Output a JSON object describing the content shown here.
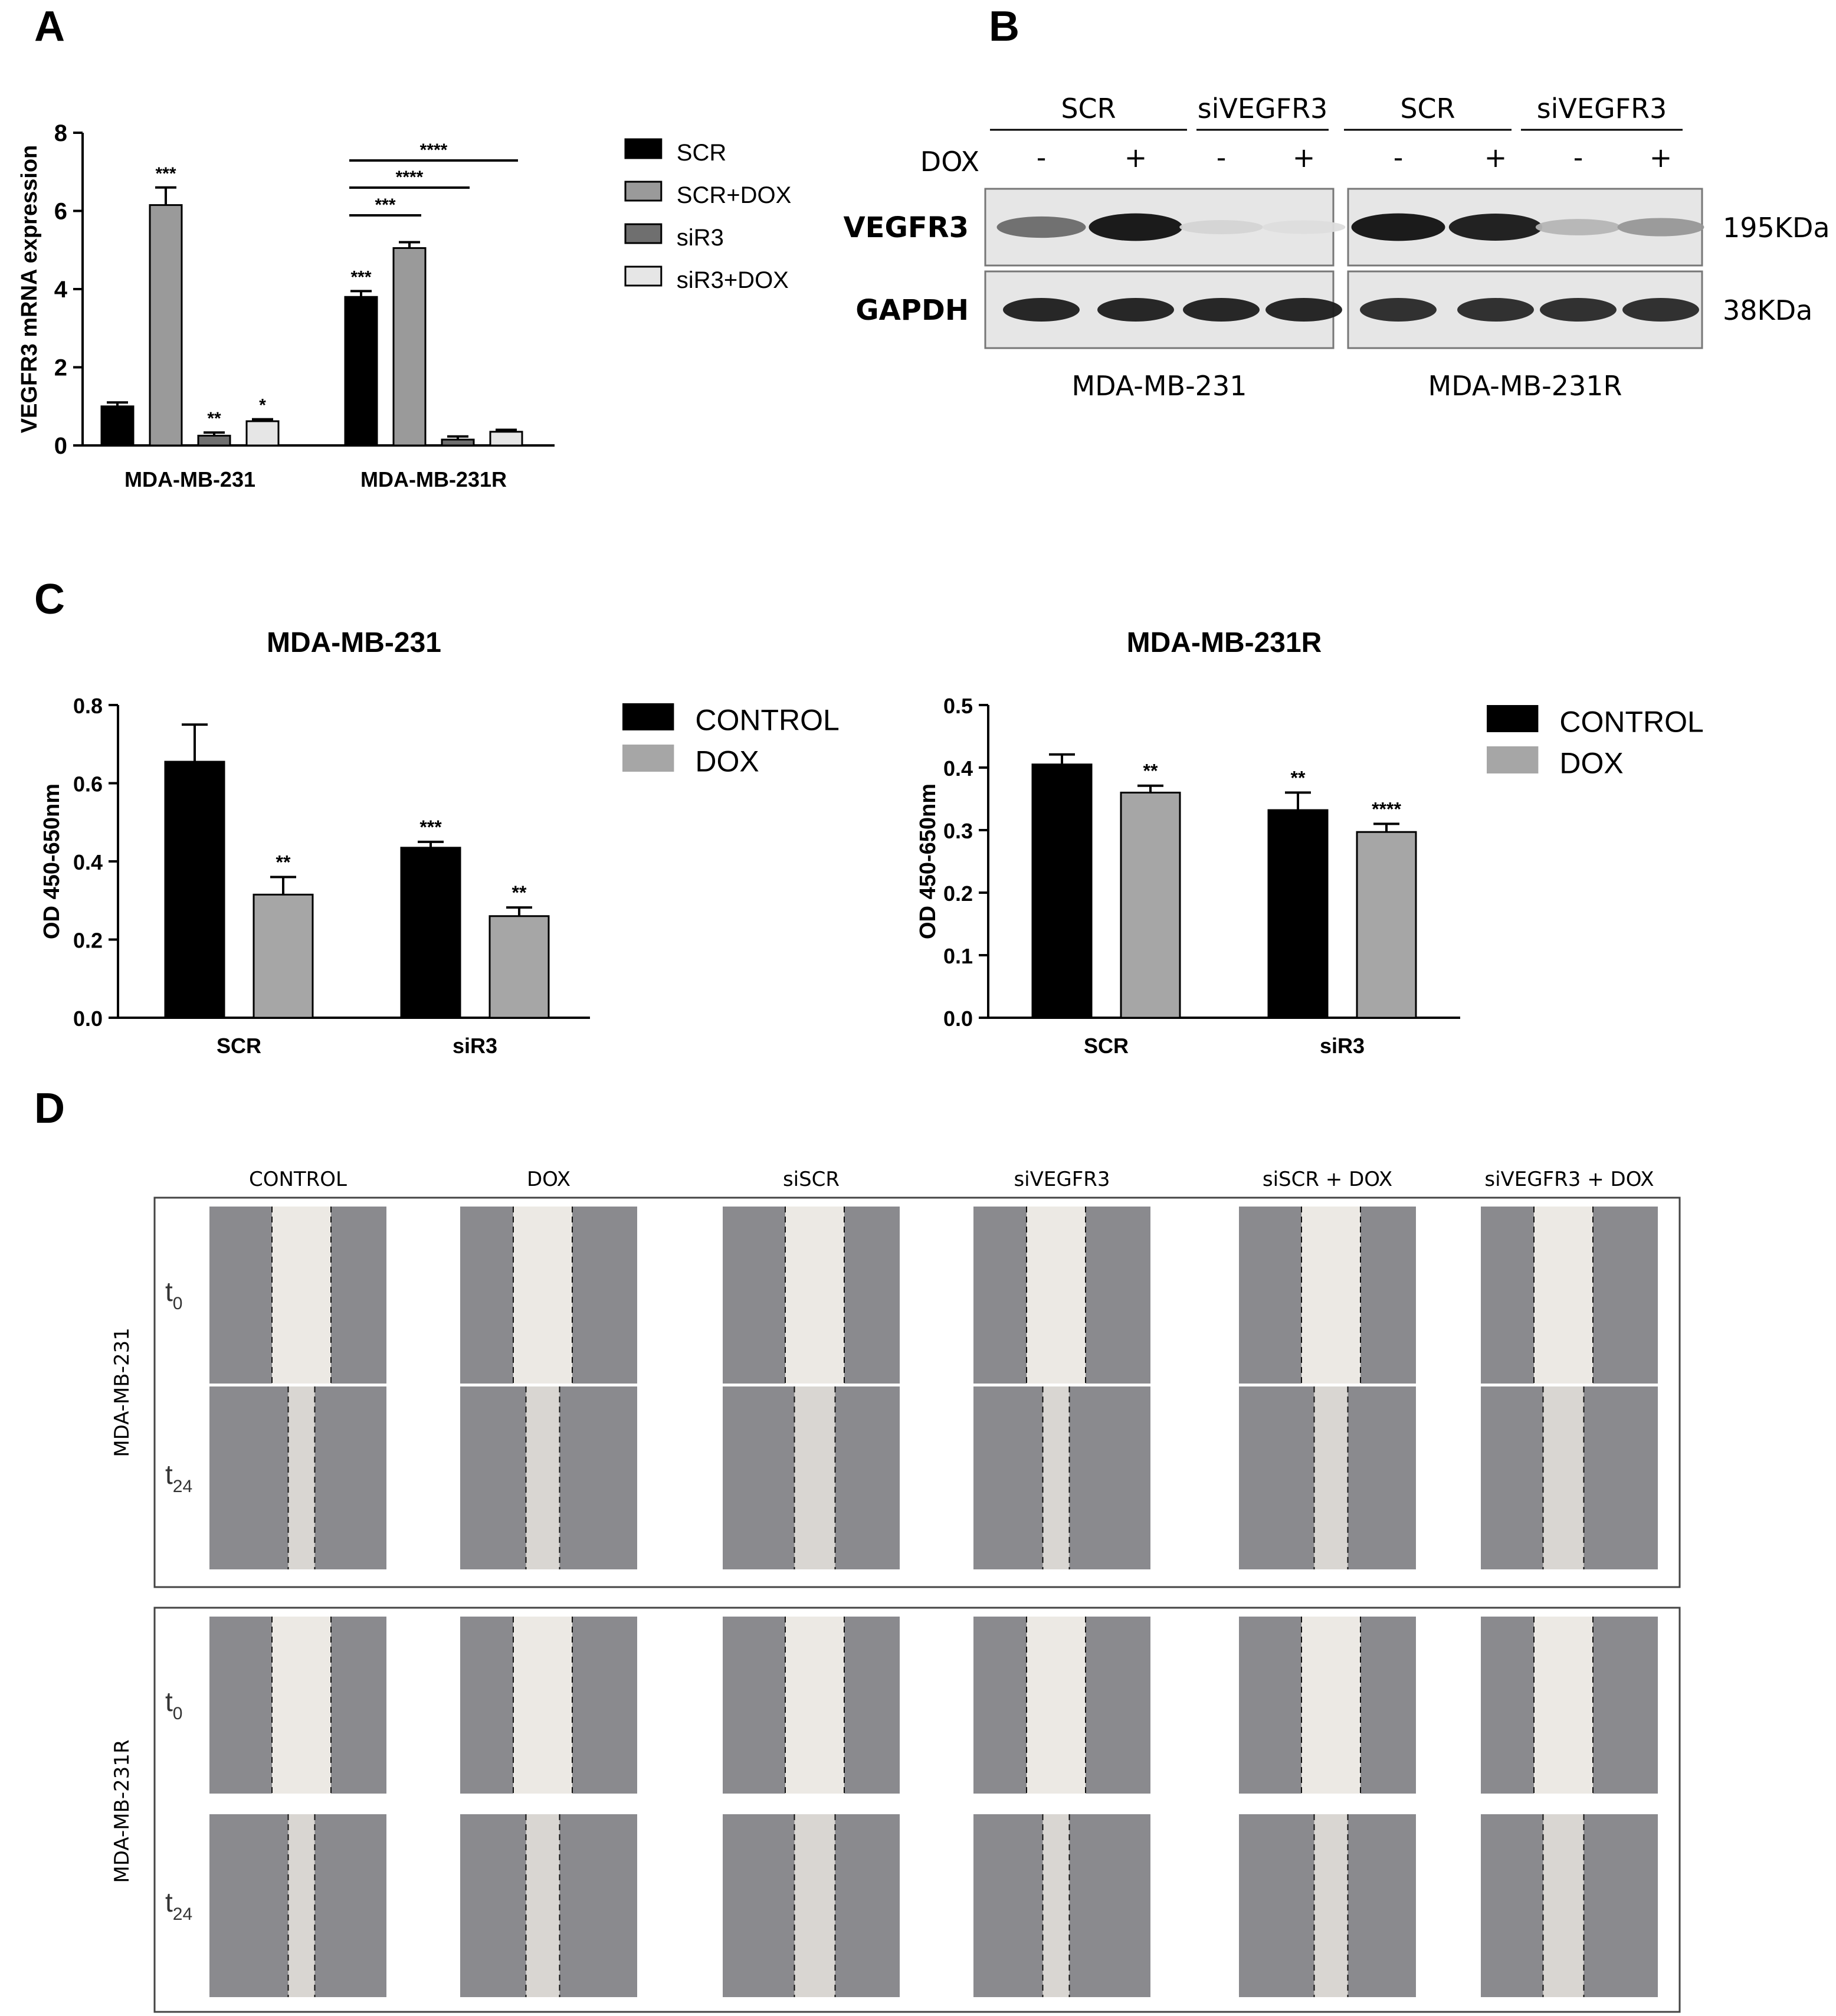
{
  "panels": {
    "a": "A",
    "b": "B",
    "c": "C",
    "d": "D"
  },
  "chart_data": [
    {
      "type": "bar",
      "panel": "A",
      "ylabel": "VEGFR3 mRNA expression",
      "ylim": [
        0,
        8
      ],
      "yticks": [
        "0",
        "2",
        "4",
        "6",
        "8"
      ],
      "categories": [
        "MDA-MB-231",
        "MDA-MB-231R"
      ],
      "series": [
        {
          "name": "SCR",
          "color": "#000000",
          "values": [
            1.0,
            3.8
          ],
          "errors": [
            0.1,
            0.15
          ],
          "stars": [
            "",
            "***"
          ]
        },
        {
          "name": "SCR+DOX",
          "color": "#9a9a9a",
          "values": [
            6.15,
            5.05
          ],
          "errors": [
            0.45,
            0.15
          ],
          "stars": [
            "***",
            ""
          ]
        },
        {
          "name": "siR3",
          "color": "#6f6f6f",
          "values": [
            0.25,
            0.15
          ],
          "errors": [
            0.08,
            0.08
          ],
          "stars": [
            "**",
            ""
          ]
        },
        {
          "name": "siR3+DOX",
          "color": "#e6e6e6",
          "values": [
            0.62,
            0.35
          ],
          "errors": [
            0.05,
            0.05
          ],
          "stars": [
            "*",
            ""
          ]
        }
      ],
      "brackets": [
        "***",
        "****",
        "****"
      ],
      "legend": "right"
    },
    {
      "type": "bar",
      "panel": "C",
      "title": "MDA-MB-231",
      "ylabel": "OD 450-650nm",
      "ylim": [
        0,
        0.8
      ],
      "yticks": [
        "0.0",
        "0.2",
        "0.4",
        "0.6",
        "0.8"
      ],
      "categories": [
        "SCR",
        "siR3"
      ],
      "series": [
        {
          "name": "CONTROL",
          "color": "#000000",
          "values": [
            0.655,
            0.435
          ],
          "errors": [
            0.095,
            0.015
          ],
          "stars": [
            "",
            "***"
          ]
        },
        {
          "name": "DOX",
          "color": "#a6a6a6",
          "values": [
            0.315,
            0.26
          ],
          "errors": [
            0.045,
            0.022
          ],
          "stars": [
            "**",
            "**"
          ]
        }
      ],
      "legend": "right"
    },
    {
      "type": "bar",
      "panel": "C",
      "title": "MDA-MB-231R",
      "ylabel": "OD 450-650nm",
      "ylim": [
        0,
        0.5
      ],
      "yticks": [
        "0.0",
        "0.1",
        "0.2",
        "0.3",
        "0.4",
        "0.5"
      ],
      "categories": [
        "SCR",
        "siR3"
      ],
      "series": [
        {
          "name": "CONTROL",
          "color": "#000000",
          "values": [
            0.405,
            0.332
          ],
          "errors": [
            0.016,
            0.028
          ],
          "stars": [
            "",
            "**"
          ]
        },
        {
          "name": "DOX",
          "color": "#a6a6a6",
          "values": [
            0.36,
            0.297
          ],
          "errors": [
            0.011,
            0.013
          ],
          "stars": [
            "**",
            "****"
          ]
        }
      ],
      "legend": "right"
    }
  ],
  "blot": {
    "groups": [
      "SCR",
      "siVEGFR3",
      "SCR",
      "siVEGFR3"
    ],
    "dox_label": "DOX",
    "dox_signs": [
      "-",
      "+",
      "-",
      "+",
      "-",
      "+",
      "-",
      "+"
    ],
    "rows": [
      {
        "label": "VEGFR3",
        "size": "195KDa",
        "intensities": [
          0.55,
          0.95,
          0.08,
          0.04,
          0.95,
          0.92,
          0.22,
          0.35
        ]
      },
      {
        "label": "GAPDH",
        "size": "38KDa",
        "intensities": [
          0.9,
          0.9,
          0.9,
          0.9,
          0.85,
          0.85,
          0.85,
          0.85
        ]
      }
    ],
    "cell_lines": [
      "MDA-MB-231",
      "MDA-MB-231R"
    ]
  },
  "scratch": {
    "columns": [
      "CONTROL",
      "DOX",
      "siSCR",
      "siVEGFR3",
      "siSCR + DOX",
      "siVEGFR3 + DOX"
    ],
    "cell_lines": [
      "MDA-MB-231",
      "MDA-MB-231R"
    ],
    "times": [
      {
        "t": "t",
        "sub": "0"
      },
      {
        "t": "t",
        "sub": "24"
      }
    ]
  }
}
